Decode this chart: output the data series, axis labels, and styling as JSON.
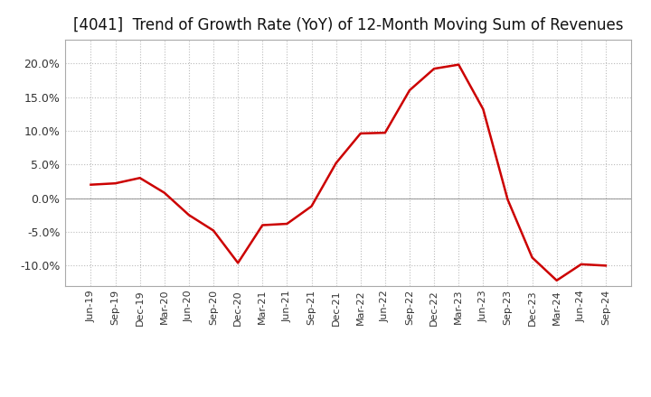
{
  "title": "[4041]  Trend of Growth Rate (YoY) of 12-Month Moving Sum of Revenues",
  "title_fontsize": 12,
  "line_color": "#cc0000",
  "line_width": 1.8,
  "background_color": "#ffffff",
  "plot_bg_color": "#ffffff",
  "grid_color": "#bbbbbb",
  "ylim": [
    -0.13,
    0.235
  ],
  "yticks": [
    -0.1,
    -0.05,
    0.0,
    0.05,
    0.1,
    0.15,
    0.2
  ],
  "x_labels": [
    "Jun-19",
    "Sep-19",
    "Dec-19",
    "Mar-20",
    "Jun-20",
    "Sep-20",
    "Dec-20",
    "Mar-21",
    "Jun-21",
    "Sep-21",
    "Dec-21",
    "Mar-22",
    "Jun-22",
    "Sep-22",
    "Dec-22",
    "Mar-23",
    "Jun-23",
    "Sep-23",
    "Dec-23",
    "Mar-24",
    "Jun-24",
    "Sep-24"
  ],
  "y_values": [
    0.02,
    0.022,
    0.03,
    0.008,
    -0.025,
    -0.048,
    -0.096,
    -0.04,
    -0.038,
    -0.012,
    0.052,
    0.096,
    0.097,
    0.16,
    0.192,
    0.198,
    0.132,
    -0.002,
    -0.088,
    -0.122,
    -0.098,
    -0.1
  ]
}
